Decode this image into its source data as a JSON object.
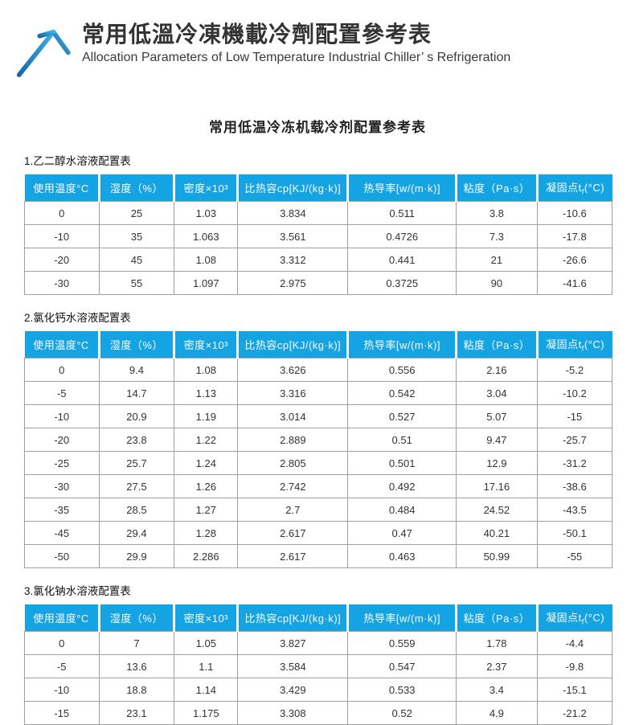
{
  "header": {
    "title_zh": "常用低溫冷凍機載冷劑配置參考表",
    "subtitle_en": "Allocation Parameters of Low Temperature Industrial Chiller’ s Refrigeration",
    "logo_icon": "arrow-up-right-icon"
  },
  "body": {
    "title": "常用低温冷冻机载冷剂配置参考表"
  },
  "columns": [
    "使用温度°C",
    "湿度（%）",
    "密度×10³",
    "比热容cp[KJ/(kg·k)]",
    "热导率[w/(m·k)]",
    "粘度（Pa·s）",
    "凝固点tf(°C)"
  ],
  "tables": [
    {
      "section_label": "1.乙二醇水溶液配置表",
      "rows": [
        [
          "0",
          "25",
          "1.03",
          "3.834",
          "0.511",
          "3.8",
          "-10.6"
        ],
        [
          "-10",
          "35",
          "1.063",
          "3.561",
          "0.4726",
          "7.3",
          "-17.8"
        ],
        [
          "-20",
          "45",
          "1.08",
          "3.312",
          "0.441",
          "21",
          "-26.6"
        ],
        [
          "-30",
          "55",
          "1.097",
          "2.975",
          "0.3725",
          "90",
          "-41.6"
        ]
      ]
    },
    {
      "section_label": "2.氯化钙水溶液配置表",
      "rows": [
        [
          "0",
          "9.4",
          "1.08",
          "3.626",
          "0.556",
          "2.16",
          "-5.2"
        ],
        [
          "-5",
          "14.7",
          "1.13",
          "3.316",
          "0.542",
          "3.04",
          "-10.2"
        ],
        [
          "-10",
          "20.9",
          "1.19",
          "3.014",
          "0.527",
          "5.07",
          "-15"
        ],
        [
          "-20",
          "23.8",
          "1.22",
          "2.889",
          "0.51",
          "9.47",
          "-25.7"
        ],
        [
          "-25",
          "25.7",
          "1.24",
          "2.805",
          "0.501",
          "12.9",
          "-31.2"
        ],
        [
          "-30",
          "27.5",
          "1.26",
          "2.742",
          "0.492",
          "17.16",
          "-38.6"
        ],
        [
          "-35",
          "28.5",
          "1.27",
          "2.7",
          "0.484",
          "24.52",
          "-43.5"
        ],
        [
          "-45",
          "29.4",
          "1.28",
          "2.617",
          "0.47",
          "40.21",
          "-50.1"
        ],
        [
          "-50",
          "29.9",
          "2.286",
          "2.617",
          "0.463",
          "50.99",
          "-55"
        ]
      ]
    },
    {
      "section_label": "3.氯化钠水溶液配置表",
      "rows": [
        [
          "0",
          "7",
          "1.05",
          "3.827",
          "0.559",
          "1.78",
          "-4.4"
        ],
        [
          "-5",
          "13.6",
          "1.1",
          "3.584",
          "0.547",
          "2.37",
          "-9.8"
        ],
        [
          "-10",
          "18.8",
          "1.14",
          "3.429",
          "0.533",
          "3.4",
          "-15.1"
        ],
        [
          "-15",
          "23.1",
          "1.175",
          "3.308",
          "0.52",
          "4.9",
          "-21.2"
        ]
      ]
    }
  ],
  "colors": {
    "table_header_blue": "#14a3e3",
    "table_header_text": "#ffffff",
    "grid_border": "#9f9f9f",
    "title_text": "#333333",
    "logo_blue_dark": "#1668ab",
    "logo_blue_light": "#3fb0e6"
  }
}
